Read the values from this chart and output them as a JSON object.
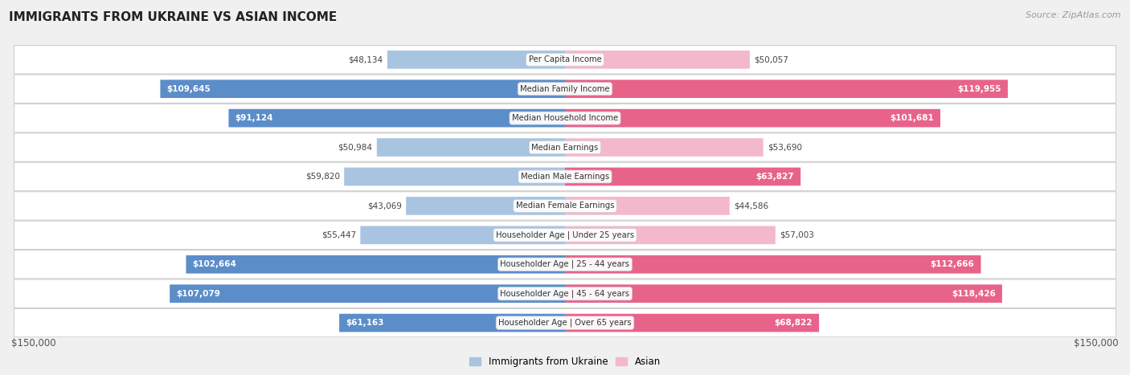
{
  "title": "IMMIGRANTS FROM UKRAINE VS ASIAN INCOME",
  "source": "Source: ZipAtlas.com",
  "categories": [
    "Per Capita Income",
    "Median Family Income",
    "Median Household Income",
    "Median Earnings",
    "Median Male Earnings",
    "Median Female Earnings",
    "Householder Age | Under 25 years",
    "Householder Age | 25 - 44 years",
    "Householder Age | 45 - 64 years",
    "Householder Age | Over 65 years"
  ],
  "ukraine_values": [
    48134,
    109645,
    91124,
    50984,
    59820,
    43069,
    55447,
    102664,
    107079,
    61163
  ],
  "asian_values": [
    50057,
    119955,
    101681,
    53690,
    63827,
    44586,
    57003,
    112666,
    118426,
    68822
  ],
  "ukraine_labels": [
    "$48,134",
    "$109,645",
    "$91,124",
    "$50,984",
    "$59,820",
    "$43,069",
    "$55,447",
    "$102,664",
    "$107,079",
    "$61,163"
  ],
  "asian_labels": [
    "$50,057",
    "$119,955",
    "$101,681",
    "$53,690",
    "$63,827",
    "$44,586",
    "$57,003",
    "$112,666",
    "$118,426",
    "$68,822"
  ],
  "ukraine_color_light": "#a8c4e0",
  "ukraine_color_dark": "#5b8dc9",
  "asian_color_light": "#f4b8cc",
  "asian_color_dark": "#e8638a",
  "background_color": "#f0f0f0",
  "row_bg_color": "#ffffff",
  "row_border_color": "#d0d0d0",
  "max_value": 150000,
  "legend_ukraine": "Immigrants from Ukraine",
  "legend_asian": "Asian",
  "xlabel_left": "$150,000",
  "xlabel_right": "$150,000",
  "ukraine_threshold": 60000,
  "asian_threshold": 60000
}
